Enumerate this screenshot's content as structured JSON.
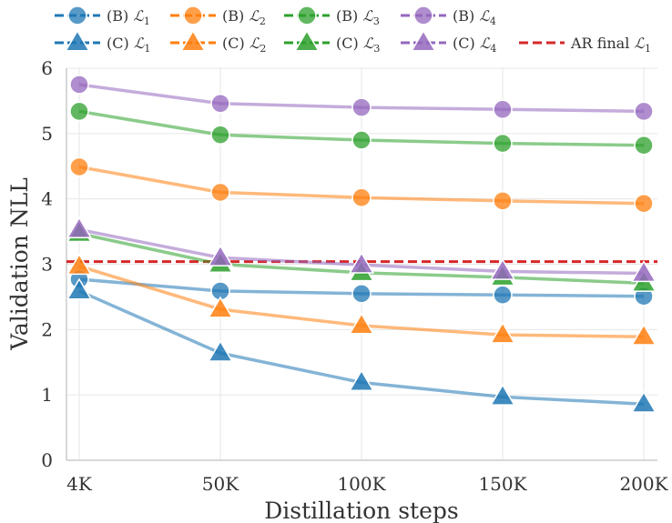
{
  "chart_data": {
    "type": "line",
    "xlabel": "Distillation steps",
    "ylabel": "Validation NLL",
    "categories": [
      "4K",
      "50K",
      "100K",
      "150K",
      "200K"
    ],
    "ylim": [
      0,
      6
    ],
    "yticks": [
      "0",
      "1",
      "2",
      "3",
      "4",
      "5",
      "6"
    ],
    "grid": true,
    "legend_position": "top",
    "series": [
      {
        "name": "(B) L1",
        "label_prefix": "(B) ",
        "label_math": "ℒ",
        "label_sub": "1",
        "color": "#1f77b4",
        "marker": "circle",
        "values": [
          2.77,
          2.59,
          2.55,
          2.53,
          2.51
        ]
      },
      {
        "name": "(B) L2",
        "label_prefix": "(B) ",
        "label_math": "ℒ",
        "label_sub": "2",
        "color": "#ff7f0e",
        "marker": "circle",
        "values": [
          4.49,
          4.1,
          4.02,
          3.97,
          3.93
        ]
      },
      {
        "name": "(B) L3",
        "label_prefix": "(B) ",
        "label_math": "ℒ",
        "label_sub": "3",
        "color": "#2ca02c",
        "marker": "circle",
        "values": [
          5.34,
          4.98,
          4.9,
          4.85,
          4.82
        ]
      },
      {
        "name": "(B) L4",
        "label_prefix": "(B) ",
        "label_math": "ℒ",
        "label_sub": "4",
        "color": "#9467bd",
        "marker": "circle",
        "values": [
          5.75,
          5.46,
          5.4,
          5.37,
          5.34
        ]
      },
      {
        "name": "(C) L1",
        "label_prefix": "(C) ",
        "label_math": "ℒ",
        "label_sub": "1",
        "color": "#1f77b4",
        "marker": "triangle",
        "values": [
          2.59,
          1.64,
          1.19,
          0.97,
          0.86
        ]
      },
      {
        "name": "(C) L2",
        "label_prefix": "(C) ",
        "label_math": "ℒ",
        "label_sub": "2",
        "color": "#ff7f0e",
        "marker": "triangle",
        "values": [
          2.97,
          2.31,
          2.06,
          1.92,
          1.89
        ]
      },
      {
        "name": "(C) L3",
        "label_prefix": "(C) ",
        "label_math": "ℒ",
        "label_sub": "3",
        "color": "#2ca02c",
        "marker": "triangle",
        "values": [
          3.47,
          3.0,
          2.87,
          2.8,
          2.71
        ]
      },
      {
        "name": "(C) L4",
        "label_prefix": "(C) ",
        "label_math": "ℒ",
        "label_sub": "4",
        "color": "#9467bd",
        "marker": "triangle",
        "values": [
          3.53,
          3.1,
          2.99,
          2.89,
          2.86
        ]
      }
    ],
    "reference_line": {
      "name": "AR final L1",
      "label_prefix": "AR final ",
      "label_math": "ℒ",
      "label_sub": "1",
      "color": "#d62728",
      "y": 3.04,
      "style": "dashed"
    }
  }
}
